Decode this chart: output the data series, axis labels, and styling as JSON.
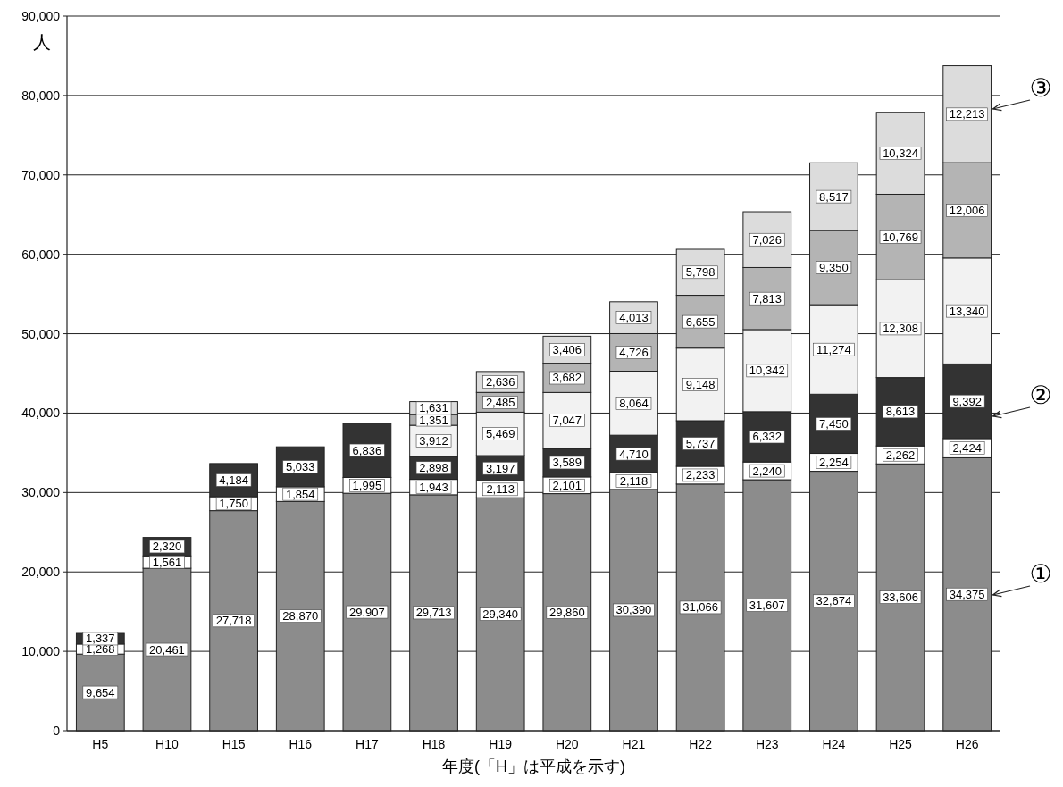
{
  "chart_data": {
    "type": "bar",
    "stacked": true,
    "grid": "y",
    "xlabel": "年度(「H」は平成を示す)",
    "ylabel": "人",
    "categories": [
      "H5",
      "H10",
      "H15",
      "H16",
      "H17",
      "H18",
      "H19",
      "H20",
      "H21",
      "H22",
      "H23",
      "H24",
      "H25",
      "H26"
    ],
    "ylim": [
      0,
      90000
    ],
    "yticks": [
      0,
      {
        "value": 10000,
        "label": "10,000"
      },
      {
        "value": 20000,
        "label": "20,000"
      },
      {
        "value": 30000,
        "label": "30,000"
      },
      {
        "value": 40000,
        "label": "40,000"
      },
      {
        "value": 50000,
        "label": "50,000"
      },
      {
        "value": 60000,
        "label": "60,000"
      },
      {
        "value": 70000,
        "label": "70,000"
      },
      {
        "value": 80000,
        "label": "80,000"
      },
      {
        "value": 90000,
        "label": "90,000"
      }
    ],
    "series": [
      {
        "color": "#8c8c8c",
        "values": [
          9654,
          20461,
          27718,
          28870,
          29907,
          29713,
          29340,
          29860,
          30390,
          31066,
          31607,
          32674,
          33606,
          34375
        ],
        "value_labels": [
          "9,654",
          "20,461",
          "27,718",
          "28,870",
          "29,907",
          "29,713",
          "29,340",
          "29,860",
          "30,390",
          "31,066",
          "31,607",
          "32,674",
          "33,606",
          "34,375"
        ]
      },
      {
        "color": "#ffffff",
        "values": [
          1268,
          1561,
          1750,
          1854,
          1995,
          1943,
          2113,
          2101,
          2118,
          2233,
          2240,
          2254,
          2262,
          2424
        ],
        "value_labels": [
          "1,268",
          "1,561",
          "1,750",
          "1,854",
          "1,995",
          "1,943",
          "2,113",
          "2,101",
          "2,118",
          "2,233",
          "2,240",
          "2,254",
          "2,262",
          "2,424"
        ]
      },
      {
        "color": "#333333",
        "values": [
          1337,
          2320,
          4184,
          5033,
          6836,
          2898,
          3197,
          3589,
          4710,
          5737,
          6332,
          7450,
          8613,
          9392
        ],
        "value_labels": [
          "1,337",
          "2,320",
          "4,184",
          "5,033",
          "6,836",
          "2,898",
          "3,197",
          "3,589",
          "4,710",
          "5,737",
          "6,332",
          "7,450",
          "8,613",
          "9,392"
        ]
      },
      {
        "color": "#f2f2f2",
        "values": [
          null,
          null,
          null,
          null,
          null,
          3912,
          5469,
          7047,
          8064,
          9148,
          10342,
          11274,
          12308,
          13340
        ],
        "value_labels": [
          null,
          null,
          null,
          null,
          null,
          "3,912",
          "5,469",
          "7,047",
          "8,064",
          "9,148",
          "10,342",
          "11,274",
          "12,308",
          "13,340"
        ]
      },
      {
        "color": "#b4b4b4",
        "values": [
          null,
          null,
          null,
          null,
          null,
          1351,
          2485,
          3682,
          4726,
          6655,
          7813,
          9350,
          10769,
          12006
        ],
        "value_labels": [
          null,
          null,
          null,
          null,
          null,
          "1,351",
          "2,485",
          "3,682",
          "4,726",
          "6,655",
          "7,813",
          "9,350",
          "10,769",
          "12,006"
        ]
      },
      {
        "color": "#dcdcdc",
        "values": [
          null,
          null,
          null,
          null,
          null,
          1631,
          2636,
          3406,
          4013,
          5798,
          7026,
          8517,
          10324,
          12213
        ],
        "value_labels": [
          null,
          null,
          null,
          null,
          null,
          "1,631",
          "2,636",
          "3,406",
          "4,013",
          "5,798",
          "7,026",
          "8,517",
          "10,324",
          "12,213"
        ]
      }
    ],
    "annotations": [
      "①",
      "②",
      "③"
    ]
  }
}
